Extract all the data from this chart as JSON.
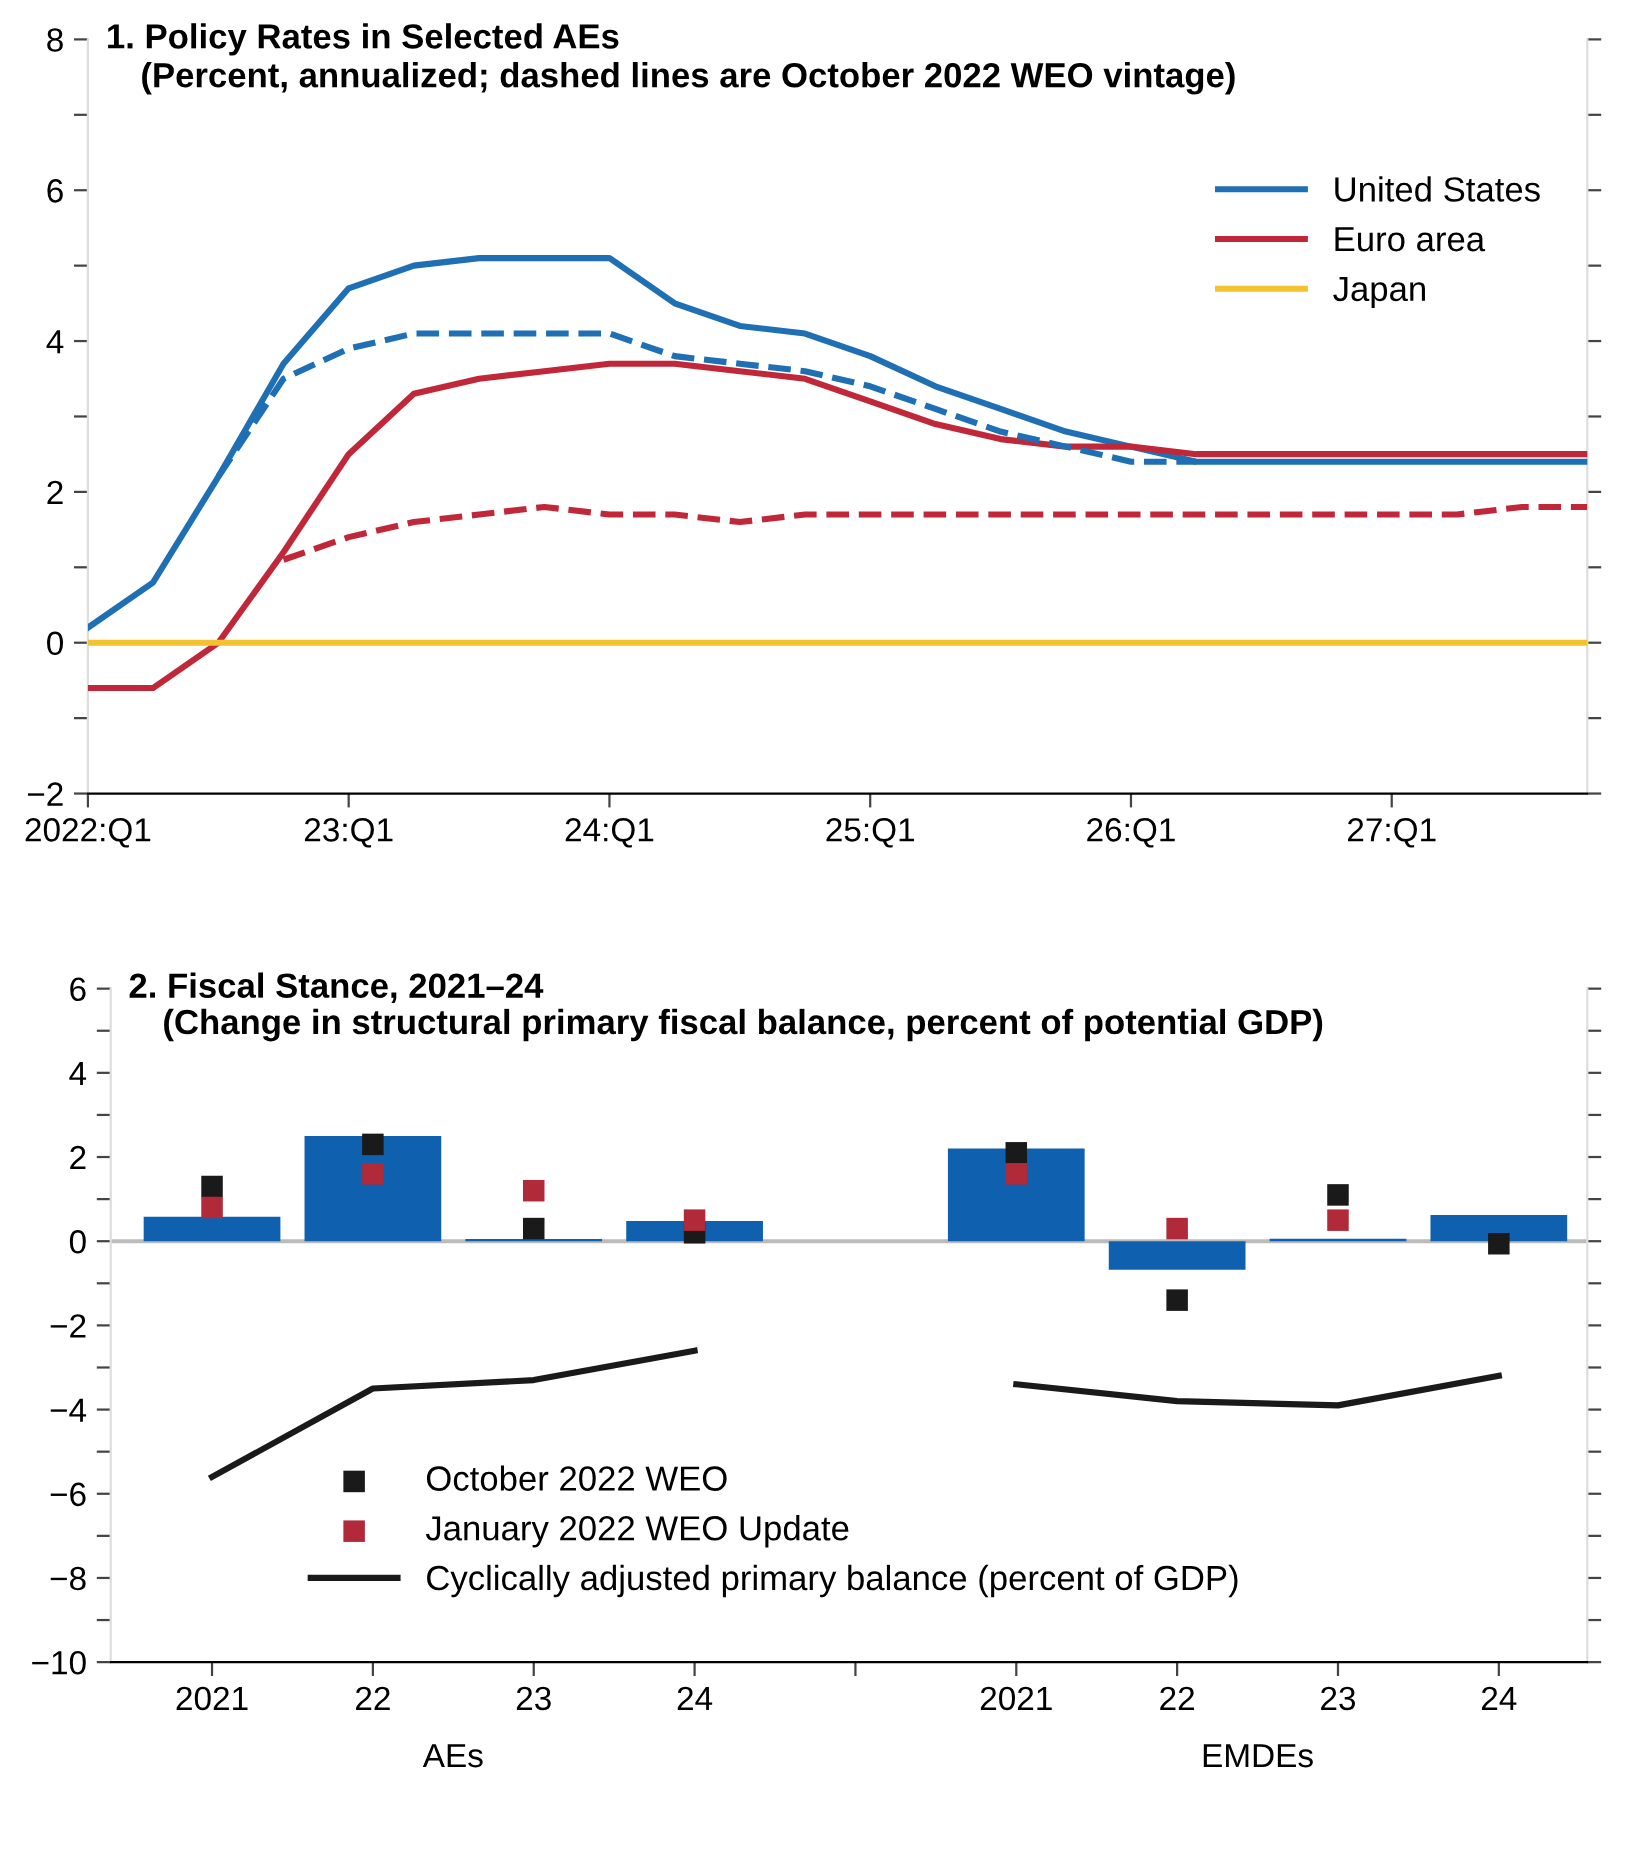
{
  "chart_data": [
    {
      "type": "line",
      "title": "1. Policy Rates in Selected AEs",
      "subtitle": "(Percent, annualized; dashed lines are October 2022 WEO vintage)",
      "categories": [
        "2022:Q1",
        null,
        null,
        null,
        "23:Q1",
        null,
        null,
        null,
        "24:Q1",
        null,
        null,
        null,
        "25:Q1",
        null,
        null,
        null,
        "26:Q1",
        null,
        null,
        null,
        "27:Q1",
        null,
        null,
        null
      ],
      "series": [
        {
          "name": "United States",
          "color": "#1f6fb4",
          "line_style": "solid",
          "values": [
            0.2,
            0.8,
            2.2,
            3.7,
            4.7,
            5.0,
            5.1,
            5.1,
            5.1,
            4.5,
            4.2,
            4.1,
            3.8,
            3.4,
            3.1,
            2.8,
            2.6,
            2.4,
            2.4,
            2.4,
            2.4,
            2.4,
            2.4,
            2.4
          ]
        },
        {
          "name": "Euro area",
          "color": "#c0283a",
          "line_style": "solid",
          "values": [
            -0.6,
            -0.6,
            0.0,
            1.2,
            2.5,
            3.3,
            3.5,
            3.6,
            3.7,
            3.7,
            3.6,
            3.5,
            3.2,
            2.9,
            2.7,
            2.6,
            2.6,
            2.5,
            2.5,
            2.5,
            2.5,
            2.5,
            2.5,
            2.5
          ]
        },
        {
          "name": "Japan",
          "color": "#f2c230",
          "line_style": "solid",
          "values": [
            0,
            0,
            0,
            0,
            0,
            0,
            0,
            0,
            0,
            0,
            0,
            0,
            0,
            0,
            0,
            0,
            0,
            0,
            0,
            0,
            0,
            0,
            0,
            0
          ]
        },
        {
          "color": "#1f6fb4",
          "line_style": "dashed",
          "values": [
            null,
            null,
            2.2,
            3.5,
            3.9,
            4.1,
            4.1,
            4.1,
            4.1,
            3.8,
            3.7,
            3.6,
            3.4,
            3.1,
            2.8,
            2.6,
            2.4,
            2.4,
            null,
            null,
            null,
            null,
            null,
            null
          ]
        },
        {
          "color": "#c0283a",
          "line_style": "dashed",
          "values": [
            null,
            null,
            null,
            1.1,
            1.4,
            1.6,
            1.7,
            1.8,
            1.7,
            1.7,
            1.6,
            1.7,
            1.7,
            1.7,
            1.7,
            1.7,
            1.7,
            1.7,
            1.7,
            1.7,
            1.7,
            1.7,
            1.8,
            1.8
          ]
        }
      ],
      "ylim": [
        -2,
        8
      ],
      "yticks": [
        {
          "value": -2,
          "label": "−2"
        },
        {
          "value": -1,
          "label": null
        },
        0,
        {
          "value": 1,
          "label": null
        },
        2,
        {
          "value": 3,
          "label": null
        },
        4,
        {
          "value": 5,
          "label": null
        },
        6,
        {
          "value": 7,
          "label": null
        },
        8
      ],
      "legend": "top right"
    },
    {
      "type": "bar",
      "title": "2. Fiscal Stance, 2021–24",
      "subtitle": "(Change in structural primary fiscal balance, percent of potential GDP)",
      "categories": [
        "2021",
        "22",
        "23",
        "24",
        null,
        "2021",
        "22",
        "23",
        "24"
      ],
      "series": [
        {
          "type": "bar",
          "color": "#1060b0",
          "values": [
            0.58,
            2.5,
            0.05,
            0.48,
            null,
            2.2,
            -0.68,
            0.06,
            0.62
          ]
        },
        {
          "type": "scatter",
          "name": "October 2022 WEO",
          "color": "#1a1a1a",
          "marker": "square",
          "values": [
            1.3,
            2.3,
            0.3,
            0.2,
            null,
            2.1,
            -1.4,
            1.1,
            -0.06
          ]
        },
        {
          "type": "scatter",
          "name": "January 2022 WEO Update",
          "color": "#b02a3a",
          "marker": "square",
          "values": [
            0.8,
            1.6,
            1.2,
            0.5,
            null,
            1.6,
            0.3,
            0.5,
            null
          ]
        },
        {
          "type": "line",
          "name": "Cyclically adjusted primary balance (percent of GDP)",
          "color": "#1a1a1a",
          "line_style": "solid",
          "values": [
            -5.6,
            -3.5,
            -3.3,
            -2.6,
            null,
            -3.4,
            -3.8,
            -3.9,
            -3.2
          ]
        }
      ],
      "ylim": [
        -10,
        6
      ],
      "yticks": [
        {
          "value": -10,
          "label": "−10"
        },
        {
          "value": -9,
          "label": null
        },
        {
          "value": -8,
          "label": "−8"
        },
        {
          "value": -7,
          "label": null
        },
        {
          "value": -6,
          "label": "−6"
        },
        {
          "value": -5,
          "label": null
        },
        {
          "value": -4,
          "label": "−4"
        },
        {
          "value": -3,
          "label": null
        },
        {
          "value": -2,
          "label": "−2"
        },
        {
          "value": -1,
          "label": null
        },
        0,
        {
          "value": 1,
          "label": null
        },
        2,
        {
          "value": 3,
          "label": null
        },
        4,
        {
          "value": 5,
          "label": null
        },
        6
      ],
      "ref_lines": [
        {
          "axis": "y",
          "value": 0,
          "color": "#bbbbbb"
        }
      ],
      "annotations": [
        "AEs",
        "EMDEs"
      ],
      "legend": "bottom"
    }
  ]
}
